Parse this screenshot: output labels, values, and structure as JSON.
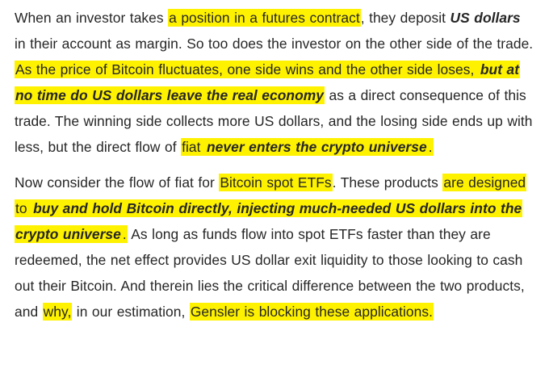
{
  "colors": {
    "highlight": "#fff200",
    "text": "#262626"
  },
  "paragraphs": [
    {
      "segments": [
        {
          "text": "When an investor takes ",
          "highlight": false,
          "emphasis": false
        },
        {
          "text": "a position in a futures contract",
          "highlight": true,
          "emphasis": false
        },
        {
          "text": ", they deposit ",
          "highlight": false,
          "emphasis": false
        },
        {
          "text": "US dollars",
          "highlight": false,
          "emphasis": true
        },
        {
          "text": " in their account as margin. So too does the investor on the other side of the trade. ",
          "highlight": false,
          "emphasis": false
        },
        {
          "text": "As the price of Bitcoin fluctuates, one side wins and the other side loses, ",
          "highlight": true,
          "emphasis": false
        },
        {
          "text": "but at no time do US dollars leave the real economy",
          "highlight": true,
          "emphasis": true
        },
        {
          "text": " as a direct consequence of this trade. The winning side collects more US dollars, and the losing side ends up with less, but the direct flow of ",
          "highlight": false,
          "emphasis": false
        },
        {
          "text": "fiat ",
          "highlight": true,
          "emphasis": false
        },
        {
          "text": "never enters the crypto universe",
          "highlight": true,
          "emphasis": true
        },
        {
          "text": ".",
          "highlight": true,
          "emphasis": false
        }
      ]
    },
    {
      "segments": [
        {
          "text": "Now consider the flow of fiat for ",
          "highlight": false,
          "emphasis": false
        },
        {
          "text": "Bitcoin spot ETFs",
          "highlight": true,
          "emphasis": false
        },
        {
          "text": ". These products ",
          "highlight": false,
          "emphasis": false
        },
        {
          "text": "are designed to ",
          "highlight": true,
          "emphasis": false
        },
        {
          "text": "buy and hold Bitcoin directly, injecting much-needed US dollars into the crypto universe",
          "highlight": true,
          "emphasis": true
        },
        {
          "text": ".",
          "highlight": true,
          "emphasis": false
        },
        {
          "text": " As long as funds flow into spot ETFs faster than they are redeemed, the net effect provides US dollar exit liquidity to those looking to cash out their Bitcoin. And therein lies the critical difference between the two products, and ",
          "highlight": false,
          "emphasis": false
        },
        {
          "text": "why,",
          "highlight": true,
          "emphasis": false
        },
        {
          "text": " in our estimation, ",
          "highlight": false,
          "emphasis": false
        },
        {
          "text": "Gensler is blocking these applications.",
          "highlight": true,
          "emphasis": false
        }
      ]
    }
  ]
}
